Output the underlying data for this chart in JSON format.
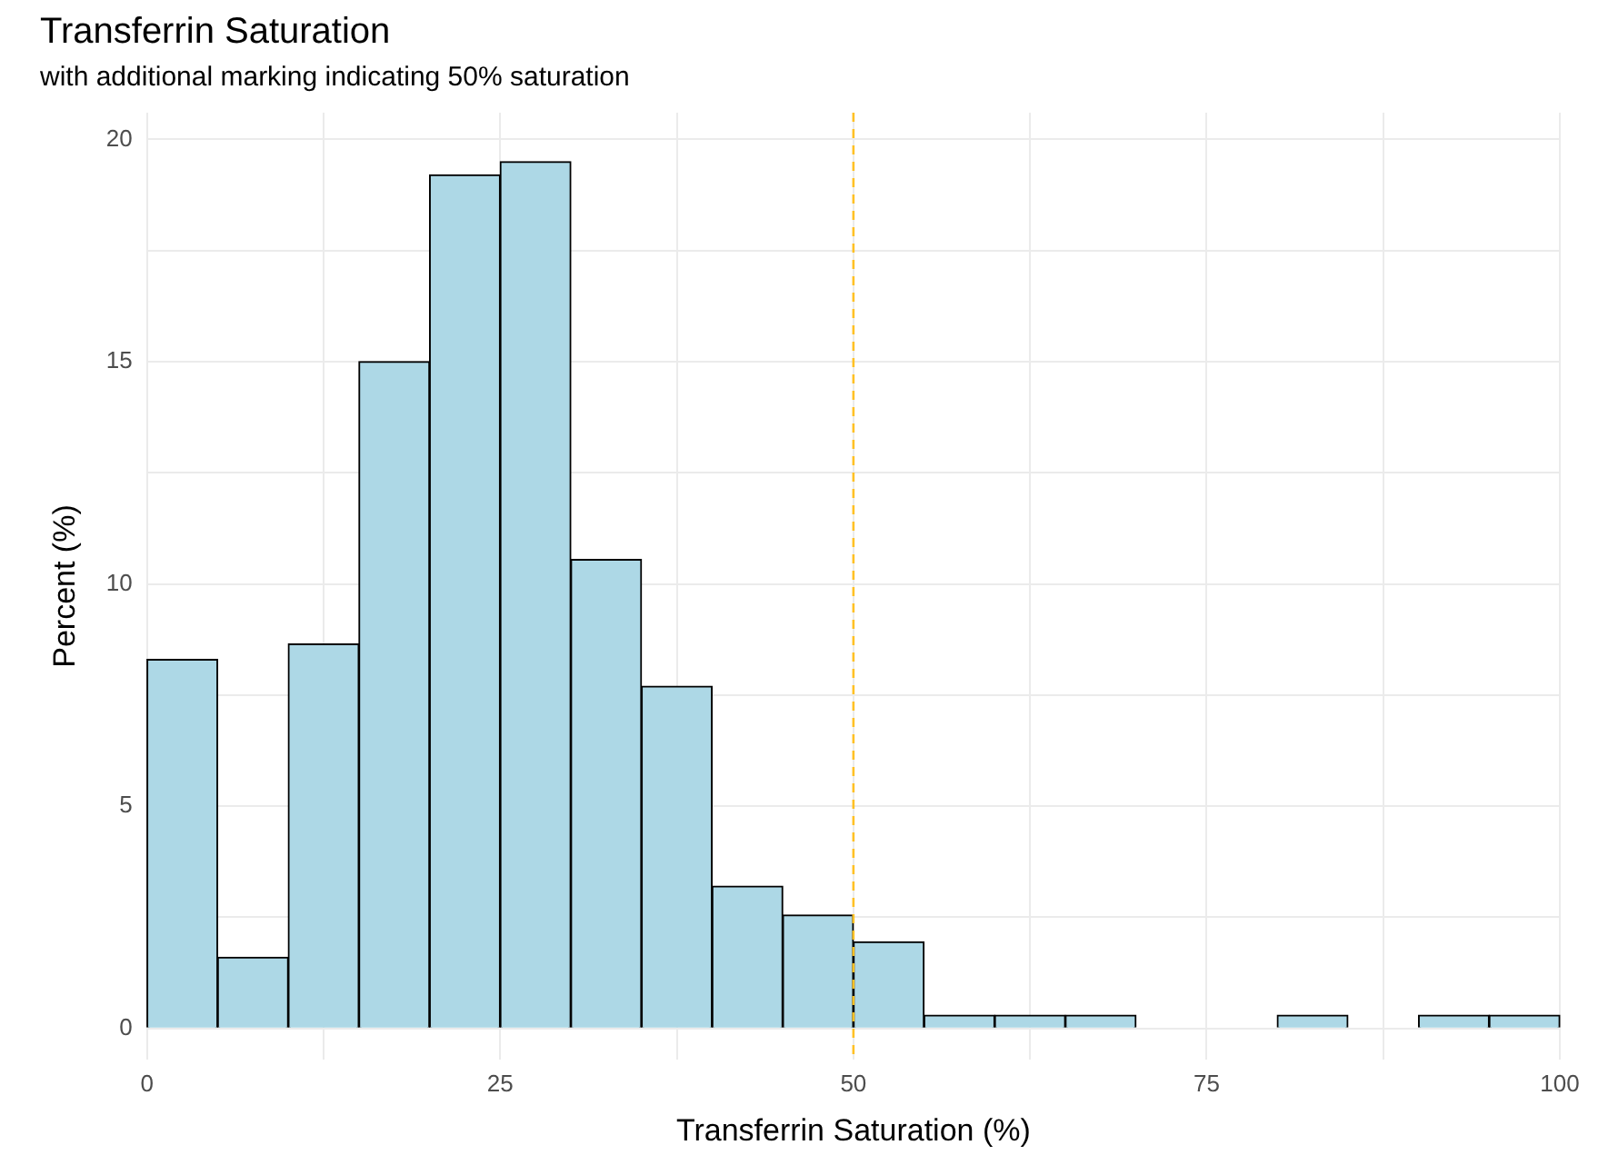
{
  "chart_data": {
    "type": "histogram",
    "title": "Transferrin Saturation",
    "subtitle": "with additional marking indicating 50% saturation",
    "xlabel": "Transferrin Saturation (%)",
    "ylabel": "Percent (%)",
    "bins": [
      0,
      5,
      10,
      15,
      20,
      25,
      30,
      35,
      40,
      45,
      50,
      55,
      60,
      65,
      70,
      75,
      80,
      85,
      90,
      95,
      100
    ],
    "values": [
      8.3,
      1.6,
      8.65,
      15.0,
      19.2,
      19.5,
      10.55,
      7.7,
      3.2,
      2.55,
      1.95,
      0.3,
      0.3,
      0.3,
      0,
      0,
      0.3,
      0,
      0.3,
      0.3
    ],
    "color": "#add8e6",
    "xlim": [
      0,
      100
    ],
    "ylim": [
      -0.7,
      20.6
    ],
    "xticks": [
      0,
      {
        "value": 12.5,
        "label": null
      },
      25,
      {
        "value": 37.5,
        "label": null
      },
      50,
      {
        "value": 62.5,
        "label": null
      },
      75,
      {
        "value": 87.5,
        "label": null
      },
      100
    ],
    "yticks": [
      0,
      {
        "value": 2.5,
        "label": null
      },
      5,
      {
        "value": 7.5,
        "label": null
      },
      10,
      {
        "value": 12.5,
        "label": null
      },
      15,
      {
        "value": 17.5,
        "label": null
      },
      20
    ],
    "ref_lines": [
      {
        "axis": "x",
        "value": 50,
        "color": "#ffc125",
        "line_style": "dashed"
      }
    ],
    "grid": true
  }
}
